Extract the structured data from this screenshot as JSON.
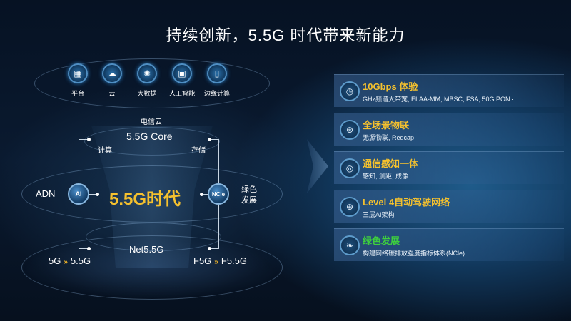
{
  "title": "持续创新，5.5G 时代带来新能力",
  "top_icons": [
    {
      "label": "平台",
      "icon": "platform-icon"
    },
    {
      "label": "云",
      "icon": "cloud-icon"
    },
    {
      "label": "大数据",
      "icon": "big-data-icon"
    },
    {
      "label": "人工智能",
      "icon": "ai-chip-icon"
    },
    {
      "label": "边缘计算",
      "icon": "edge-computing-icon"
    }
  ],
  "diagram": {
    "cloud_label": "电信云",
    "core": "5.5G Core",
    "compute": "计算",
    "storage": "存储",
    "adn": "ADN",
    "ai_node": "AI",
    "center": "5.5G时代",
    "ncle_node": "NCle",
    "green_1": "绿色",
    "green_2": "发展",
    "net": "Net5.5G",
    "left_from": "5G",
    "left_to": "5.5G",
    "right_from": "F5G",
    "right_to": "F5.5G",
    "center_color": "#f5c12e"
  },
  "panels": [
    {
      "title": "10Gbps 体验",
      "subtitle": "GHz频谱大带宽, ELAA-MM, MBSC, FSA, 50G PON ···",
      "icon": "speedometer-icon",
      "color": "#f5c12e"
    },
    {
      "title": "全场景物联",
      "subtitle": "无源物联, Redcap",
      "icon": "iot-network-icon",
      "color": "#f5c12e"
    },
    {
      "title": "通信感知一体",
      "subtitle": "感知, 测距, 成像",
      "icon": "sensing-icon",
      "color": "#f5c12e"
    },
    {
      "title": "Level 4自动驾驶网络",
      "subtitle": "三层AI架构",
      "icon": "globe-network-icon",
      "color": "#f5c12e"
    },
    {
      "title": "绿色发展",
      "subtitle": "构建网络碳排放强度指标体系(NCle)",
      "icon": "leaf-icon",
      "color": "#3ecf3e"
    }
  ]
}
